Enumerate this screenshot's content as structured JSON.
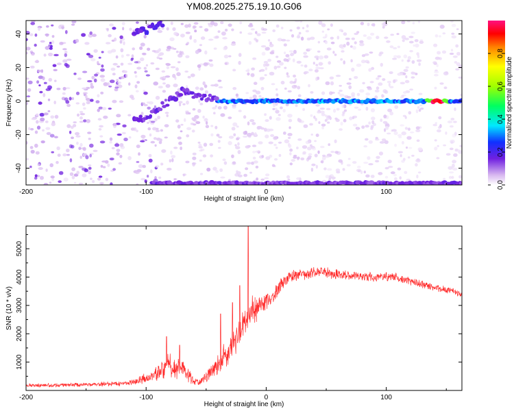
{
  "figure_title": "YM08.2025.275.19.10.G06",
  "chart_data": [
    {
      "type": "heatmap",
      "title": "YM08.2025.275.19.10.G06",
      "xlabel": "Height of straight line (km)",
      "ylabel": "Frequency (Hz)",
      "xlim": [
        -200,
        163
      ],
      "ylim": [
        -50,
        48
      ],
      "x_ticks": [
        -200,
        -100,
        0,
        100
      ],
      "x_tick_labels": [
        "-200",
        "-100",
        "0",
        "100"
      ],
      "y_ticks": [
        -40,
        -20,
        0,
        20,
        40
      ],
      "y_tick_labels": [
        "-40",
        "-20",
        "0",
        "20",
        "40"
      ],
      "colorbar": {
        "label": "Normalized spectral amplitude",
        "range": [
          0,
          1
        ],
        "ticks": [
          0.0,
          0.2,
          0.4,
          0.6,
          0.8
        ],
        "tick_labels": [
          "0.0",
          "0.2",
          "0.4",
          "0.6",
          "0.8"
        ]
      },
      "features": [
        {
          "name": "zero-frequency line",
          "x_range": [
            -40,
            163
          ],
          "frequency": 0,
          "amplitude": 0.3,
          "peak_x": 143,
          "peak_amplitude": 1.0
        },
        {
          "name": "drifting trace",
          "points": [
            [
              -110,
              -12
            ],
            [
              -95,
              -8
            ],
            [
              -85,
              -2
            ],
            [
              -70,
              6
            ],
            [
              -55,
              3
            ],
            [
              -40,
              0
            ]
          ],
          "amplitude": 0.12
        },
        {
          "name": "upper edge trace",
          "points": [
            [
              -110,
              40
            ],
            [
              -85,
              46
            ]
          ],
          "amplitude": 0.15
        },
        {
          "name": "lower edge band",
          "x_range": [
            -95,
            163
          ],
          "frequency": -49,
          "amplitude": 0.15
        }
      ]
    },
    {
      "type": "line",
      "xlabel": "Height of straight line (km)",
      "ylabel": "SNR (10 * v/v)",
      "xlim": [
        -200,
        163
      ],
      "ylim": [
        0,
        5800
      ],
      "x_ticks": [
        -200,
        -100,
        0,
        100
      ],
      "x_tick_labels": [
        "-200",
        "-100",
        "0",
        "100"
      ],
      "y_ticks": [
        1000,
        2000,
        3000,
        4000,
        5000
      ],
      "y_tick_labels": [
        "1000",
        "2000",
        "3000",
        "4000",
        "5000"
      ],
      "color": "#ff2a2a",
      "series": [
        {
          "name": "SNR",
          "envelope_x": [
            -200,
            -180,
            -160,
            -140,
            -120,
            -110,
            -100,
            -90,
            -80,
            -70,
            -60,
            -55,
            -50,
            -45,
            -40,
            -35,
            -30,
            -25,
            -20,
            -17,
            -15,
            -13,
            -10,
            -5,
            0,
            5,
            10,
            15,
            20,
            25,
            30,
            40,
            50,
            60,
            70,
            80,
            90,
            100,
            110,
            120,
            130,
            140,
            150,
            163
          ],
          "envelope_y": [
            180,
            180,
            200,
            220,
            240,
            300,
            420,
            650,
            900,
            750,
            300,
            280,
            500,
            700,
            900,
            1150,
            1400,
            1800,
            2200,
            2500,
            2600,
            2700,
            2850,
            3000,
            3150,
            3300,
            3550,
            3850,
            4000,
            4050,
            4100,
            4150,
            4150,
            4100,
            4050,
            4000,
            4000,
            4000,
            3950,
            3850,
            3750,
            3650,
            3550,
            3400
          ],
          "noise_amplitude": [
            60,
            60,
            60,
            60,
            70,
            90,
            150,
            250,
            350,
            300,
            120,
            100,
            200,
            250,
            320,
            380,
            420,
            460,
            480,
            500,
            500,
            480,
            450,
            380,
            300,
            250,
            220,
            180,
            160,
            160,
            160,
            160,
            160,
            150,
            150,
            140,
            140,
            130,
            130,
            120,
            110,
            110,
            100,
            100
          ],
          "spikes": [
            [
              -83,
              1900
            ],
            [
              -72,
              1600
            ],
            [
              -38,
              2700
            ],
            [
              -28,
              3100
            ],
            [
              -22,
              3700
            ],
            [
              -15,
              5800
            ]
          ]
        }
      ]
    }
  ]
}
